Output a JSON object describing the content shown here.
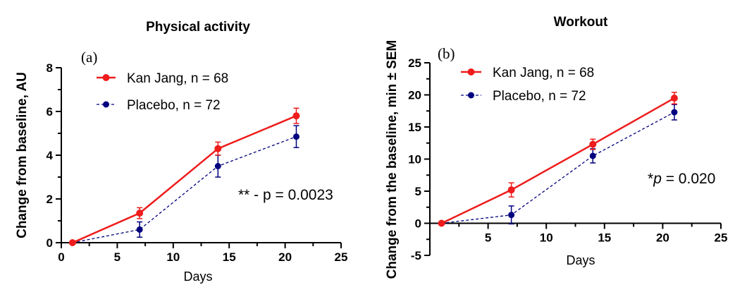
{
  "colors": {
    "kan_jang": "#ee1c1c",
    "placebo": "#00007f"
  },
  "chart_data": [
    {
      "type": "line",
      "panel_letter": "(a)",
      "title": "Physical activity",
      "xlabel": "Days",
      "ylabel": "Change from baseline, AU",
      "xlim": [
        0,
        25
      ],
      "ylim": [
        0,
        8
      ],
      "xticks": [
        0,
        5,
        10,
        15,
        20,
        25
      ],
      "yticks": [
        0,
        2,
        4,
        6,
        8
      ],
      "x": [
        1,
        7,
        14,
        21
      ],
      "legend_position": "top-left",
      "series": [
        {
          "name": "Kan Jang, n = 68",
          "style": "solid",
          "values": [
            0,
            1.35,
            4.3,
            5.8
          ],
          "sem": [
            0,
            0.25,
            0.3,
            0.35
          ]
        },
        {
          "name": "Placebo, n = 72",
          "style": "dashed",
          "values": [
            0,
            0.6,
            3.5,
            4.85
          ],
          "sem": [
            0,
            0.35,
            0.5,
            0.5
          ]
        }
      ],
      "annotation": "** - p = 0.0023"
    },
    {
      "type": "line",
      "panel_letter": "(b)",
      "title": "Workout",
      "xlabel": "Days",
      "ylabel": "Change from the baseline, min ± SEM",
      "xlim": [
        0,
        25
      ],
      "ylim": [
        -5,
        25
      ],
      "xticks": [
        5,
        10,
        15,
        20,
        25
      ],
      "yticks": [
        -5,
        0,
        5,
        10,
        15,
        20,
        25
      ],
      "x": [
        1,
        7,
        14,
        21
      ],
      "legend_position": "top-left",
      "series": [
        {
          "name": "Kan Jang, n = 68",
          "style": "solid",
          "values": [
            0,
            5.2,
            12.3,
            19.5
          ],
          "sem": [
            0,
            1.1,
            0.8,
            0.9
          ]
        },
        {
          "name": "Placebo, n = 72",
          "style": "dashed",
          "values": [
            0,
            1.3,
            10.5,
            17.3
          ],
          "sem": [
            0,
            1.4,
            1.1,
            1.2
          ]
        }
      ],
      "annotation_prefix": "*",
      "annotation_p": "p",
      "annotation_suffix": " = 0.020"
    }
  ]
}
